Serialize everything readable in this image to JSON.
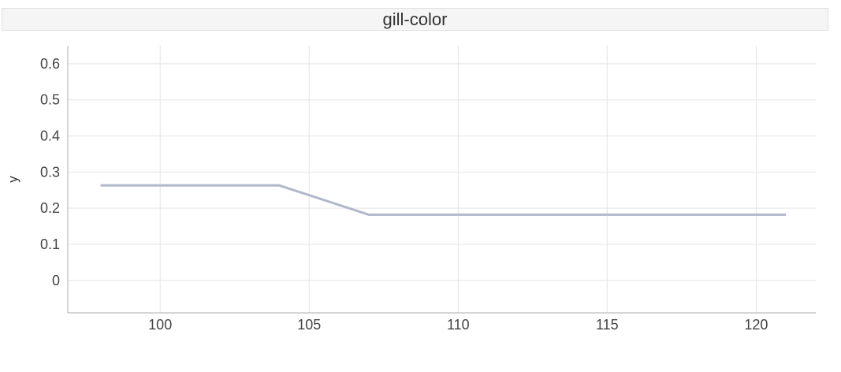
{
  "chart_data": {
    "type": "line",
    "title": "gill-color",
    "xlabel": "",
    "ylabel": "y",
    "x_ticks": [
      100,
      105,
      110,
      115,
      120
    ],
    "y_ticks": [
      0,
      0.1,
      0.2,
      0.3,
      0.4,
      0.5,
      0.6
    ],
    "xlim": [
      96.9,
      122.0
    ],
    "ylim": [
      -0.09,
      0.65
    ],
    "grid": true,
    "series": [
      {
        "x": [
          98,
          104,
          107,
          121
        ],
        "y": [
          0.263,
          0.263,
          0.182,
          0.182
        ],
        "color": "#b1b8c9"
      }
    ]
  }
}
